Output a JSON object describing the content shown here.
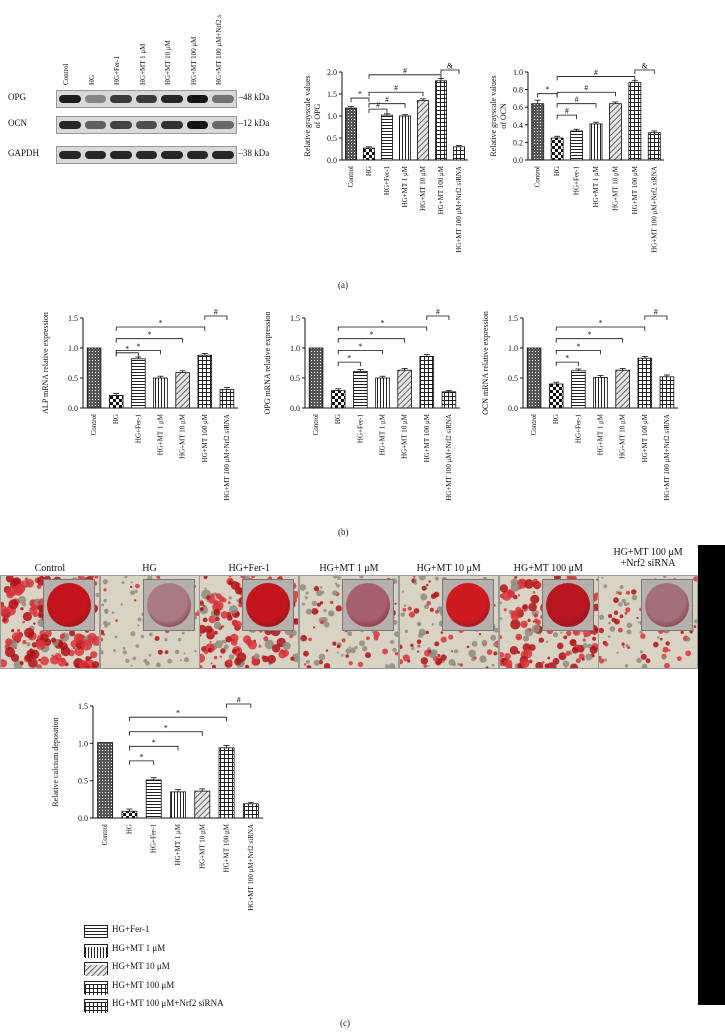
{
  "panels": {
    "a": "(a)",
    "b": "(b)",
    "c": "(c)"
  },
  "blot": {
    "lanes": [
      "Control",
      "HG",
      "HG+Fer-1",
      "HG+MT 1 μM",
      "HG+MT 10 μM",
      "HG+MT 100 μM",
      "HG+MT 100 μM+Nrf2 s"
    ],
    "rows": [
      {
        "name": "OPG",
        "kda": "48 kDa",
        "intensity": [
          0.9,
          0.35,
          0.75,
          0.75,
          0.85,
          0.95,
          0.45
        ]
      },
      {
        "name": "OCN",
        "kda": "12 kDa",
        "intensity": [
          0.85,
          0.55,
          0.7,
          0.65,
          0.8,
          0.95,
          0.5
        ]
      },
      {
        "name": "GAPDH",
        "kda": "38 kDa",
        "intensity": [
          0.85,
          0.85,
          0.85,
          0.85,
          0.85,
          0.85,
          0.85
        ]
      }
    ]
  },
  "ars": {
    "labels": [
      "Control",
      "HG",
      "HG+Fer-1",
      "HG+MT 1 μM",
      "HG+MT 10 μM",
      "HG+MT 100 μM",
      "HG+MT 100 μM\n+Nrf2 siRNA"
    ],
    "dish_colors": [
      "#c4141c",
      "#a87c82",
      "#c4141c",
      "#a8606c",
      "#d01a22",
      "#b81620",
      "#a47078"
    ],
    "stain_density": [
      0.85,
      0.15,
      0.75,
      0.35,
      0.45,
      0.8,
      0.25
    ]
  },
  "legend": [
    {
      "label": "HG+Fer-1",
      "pattern": "hlines"
    },
    {
      "label": "HG+MT 1 μM",
      "pattern": "vlines"
    },
    {
      "label": "HG+MT 10 μM",
      "pattern": "diag"
    },
    {
      "label": "HG+MT 100 μM",
      "pattern": "grid"
    },
    {
      "label": "HG+MT 100 μM+Nrf2 siRNA",
      "pattern": "grid"
    }
  ],
  "chart_data": [
    {
      "id": "opg-grayscale",
      "type": "bar",
      "categories": [
        "Control",
        "HG",
        "HG+Fer-1",
        "HG+MT 1 μM",
        "HG+MT 10 μM",
        "HG+MT 100 μM",
        "HG+MT 100 μM+Nrf2 siRNA"
      ],
      "values": [
        1.18,
        0.27,
        1.02,
        1.0,
        1.35,
        1.8,
        0.3
      ],
      "errors": [
        0.04,
        0.03,
        0.03,
        0.03,
        0.04,
        0.05,
        0.03
      ],
      "ylabel": "Relative grayscale values\nof OPG",
      "ylim": [
        0,
        2.0
      ],
      "yticks": [
        0.0,
        0.5,
        1.0,
        1.5,
        2.0
      ],
      "tick_format": 1,
      "patterns": [
        "dense",
        "checker",
        "hlines",
        "vlines",
        "diag",
        "grid",
        "grid"
      ],
      "brackets": [
        {
          "from": 0,
          "to": 1,
          "symbol": "*",
          "level": 0
        },
        {
          "from": 1,
          "to": 2,
          "symbol": "#",
          "level": 1
        },
        {
          "from": 1,
          "to": 3,
          "symbol": "#",
          "level": 2
        },
        {
          "from": 1,
          "to": 4,
          "symbol": "#",
          "level": 3
        },
        {
          "from": 1,
          "to": 5,
          "symbol": "#",
          "level": 4
        },
        {
          "from": 5,
          "to": 6,
          "symbol": "&",
          "level": 3
        }
      ]
    },
    {
      "id": "ocn-grayscale",
      "type": "bar",
      "categories": [
        "Control",
        "HG",
        "HG+Fer-1",
        "HG+MT 1 μM",
        "HG+MT 10 μM",
        "HG+MT 100 μM",
        "HG+MT 100 μM+Nrf2 siRNA"
      ],
      "values": [
        0.64,
        0.25,
        0.33,
        0.41,
        0.64,
        0.88,
        0.31
      ],
      "errors": [
        0.04,
        0.02,
        0.02,
        0.02,
        0.02,
        0.02,
        0.02
      ],
      "ylabel": "Relative grayscale values\nof OCN",
      "ylim": [
        0,
        1.0
      ],
      "yticks": [
        0.0,
        0.2,
        0.4,
        0.6,
        0.8,
        1.0
      ],
      "tick_format": 1,
      "patterns": [
        "dense",
        "checker",
        "hlines",
        "vlines",
        "diag",
        "grid",
        "grid"
      ],
      "brackets": [
        {
          "from": 0,
          "to": 1,
          "symbol": "*",
          "level": 0
        },
        {
          "from": 1,
          "to": 2,
          "symbol": "#",
          "level": 1
        },
        {
          "from": 1,
          "to": 3,
          "symbol": "#",
          "level": 2
        },
        {
          "from": 1,
          "to": 4,
          "symbol": "#",
          "level": 3
        },
        {
          "from": 1,
          "to": 5,
          "symbol": "#",
          "level": 4
        },
        {
          "from": 5,
          "to": 6,
          "symbol": "&",
          "level": 3
        }
      ]
    },
    {
      "id": "alp-mrna",
      "type": "bar",
      "categories": [
        "Control",
        "HG",
        "HG+Fer-1",
        "HG+MT 1 μM",
        "HG+MT 10 μM",
        "HG+MT 100 μM",
        "HG+MT 100 μM+Nrf2 siRNA"
      ],
      "values": [
        1.0,
        0.21,
        0.82,
        0.5,
        0.59,
        0.88,
        0.31
      ],
      "errors": [
        0.0,
        0.03,
        0.03,
        0.03,
        0.03,
        0.03,
        0.03
      ],
      "ylabel": "ALP mRNA relative expression",
      "ylim": [
        0,
        1.5
      ],
      "yticks": [
        0.0,
        0.5,
        1.0,
        1.5
      ],
      "tick_format": 1,
      "patterns": [
        "dense",
        "checker",
        "hlines",
        "vlines",
        "diag",
        "grid",
        "grid"
      ],
      "brackets": [
        {
          "from": 1,
          "to": 2,
          "symbol": "*",
          "level": 1
        },
        {
          "from": 1,
          "to": 3,
          "symbol": "*",
          "level": 2
        },
        {
          "from": 1,
          "to": 4,
          "symbol": "*",
          "level": 3
        },
        {
          "from": 1,
          "to": 5,
          "symbol": "*",
          "level": 4
        },
        {
          "from": 5,
          "to": 6,
          "symbol": "#",
          "level": 3
        }
      ]
    },
    {
      "id": "opg-mrna",
      "type": "bar",
      "categories": [
        "Control",
        "HG",
        "HG+Fer-1",
        "HG+MT 1 μM",
        "HG+MT 10 μM",
        "HG+MT 100 μM",
        "HG+MT 100 μM+Nrf2 siRNA"
      ],
      "values": [
        1.0,
        0.29,
        0.61,
        0.5,
        0.63,
        0.86,
        0.27
      ],
      "errors": [
        0.0,
        0.03,
        0.03,
        0.03,
        0.03,
        0.03,
        0.02
      ],
      "ylabel": "OPG mRNA relative expression",
      "ylim": [
        0,
        1.5
      ],
      "yticks": [
        0.0,
        0.5,
        1.0,
        1.5
      ],
      "tick_format": 1,
      "patterns": [
        "dense",
        "checker",
        "hlines",
        "vlines",
        "diag",
        "grid",
        "grid"
      ],
      "brackets": [
        {
          "from": 1,
          "to": 2,
          "symbol": "*",
          "level": 1
        },
        {
          "from": 1,
          "to": 3,
          "symbol": "*",
          "level": 2
        },
        {
          "from": 1,
          "to": 4,
          "symbol": "*",
          "level": 3
        },
        {
          "from": 1,
          "to": 5,
          "symbol": "*",
          "level": 4
        },
        {
          "from": 5,
          "to": 6,
          "symbol": "#",
          "level": 3
        }
      ]
    },
    {
      "id": "ocn-mrna",
      "type": "bar",
      "categories": [
        "Control",
        "HG",
        "HG+Fer-1",
        "HG+MT 1 μM",
        "HG+MT 10 μM",
        "HG+MT 100 μM",
        "HG+MT 100 μM+Nrf2 siRNA"
      ],
      "values": [
        1.0,
        0.4,
        0.62,
        0.51,
        0.63,
        0.83,
        0.52
      ],
      "errors": [
        0.0,
        0.03,
        0.03,
        0.03,
        0.03,
        0.03,
        0.03
      ],
      "ylabel": "OCN mRNA relative expression",
      "ylim": [
        0,
        1.5
      ],
      "yticks": [
        0.0,
        0.5,
        1.0,
        1.5
      ],
      "tick_format": 1,
      "patterns": [
        "dense",
        "checker",
        "hlines",
        "vlines",
        "diag",
        "grid",
        "grid"
      ],
      "brackets": [
        {
          "from": 1,
          "to": 2,
          "symbol": "*",
          "level": 1
        },
        {
          "from": 1,
          "to": 3,
          "symbol": "*",
          "level": 2
        },
        {
          "from": 1,
          "to": 4,
          "symbol": "*",
          "level": 3
        },
        {
          "from": 1,
          "to": 5,
          "symbol": "*",
          "level": 4
        },
        {
          "from": 5,
          "to": 6,
          "symbol": "#",
          "level": 3
        }
      ]
    },
    {
      "id": "calcium",
      "type": "bar",
      "categories": [
        "Control",
        "HG",
        "HG+Fer-1",
        "HG+MT 1 μM",
        "HG+MT 10 μM",
        "HG+MT 100 μM",
        "HG+MT 100 μM+Nrf2 siRNA"
      ],
      "values": [
        1.01,
        0.09,
        0.51,
        0.35,
        0.36,
        0.94,
        0.19
      ],
      "errors": [
        0.0,
        0.03,
        0.03,
        0.03,
        0.03,
        0.03,
        0.02
      ],
      "ylabel": "Relative calcium deposition",
      "ylim": [
        0,
        1.5
      ],
      "yticks": [
        0.0,
        0.5,
        1.0,
        1.5
      ],
      "tick_format": 1,
      "patterns": [
        "dense",
        "checker",
        "hlines",
        "vlines",
        "diag",
        "grid",
        "grid"
      ],
      "brackets": [
        {
          "from": 1,
          "to": 2,
          "symbol": "*",
          "level": 1
        },
        {
          "from": 1,
          "to": 3,
          "symbol": "*",
          "level": 2
        },
        {
          "from": 1,
          "to": 4,
          "symbol": "*",
          "level": 3
        },
        {
          "from": 1,
          "to": 5,
          "symbol": "*",
          "level": 4
        },
        {
          "from": 5,
          "to": 6,
          "symbol": "#",
          "level": 3
        }
      ]
    }
  ]
}
